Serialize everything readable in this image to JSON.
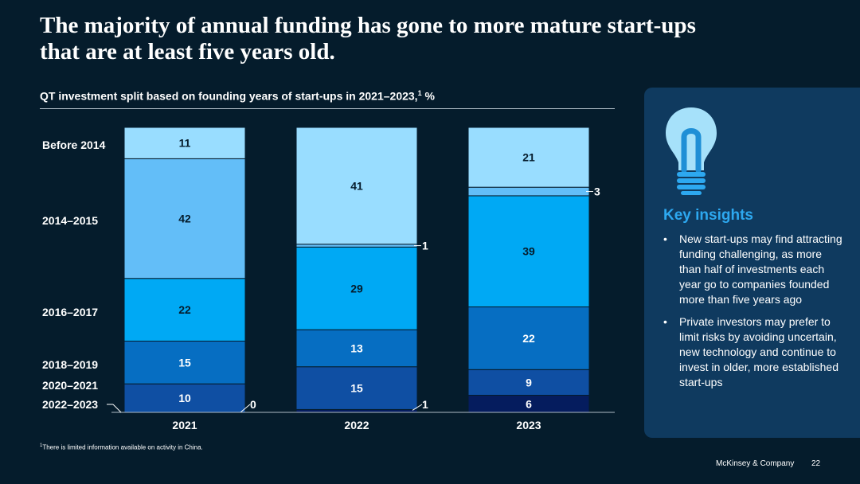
{
  "title_lines": [
    "The majority of annual funding has gone to more mature start-ups",
    "that are at least five years old."
  ],
  "subtitle_text": "QT investment split based on founding years of start-ups in 2021–2023,",
  "subtitle_sup": "1",
  "subtitle_suffix": " %",
  "colors": {
    "background": "#051c2c",
    "panel": "#0f3a5f",
    "accent": "#2da8f0",
    "segments": [
      "#051c5e",
      "#0f4fa3",
      "#066ec2",
      "#00a9f4",
      "#63bef8",
      "#99ddff"
    ]
  },
  "chart_data": {
    "type": "bar",
    "stacked": true,
    "categories": [
      "2021",
      "2022",
      "2023"
    ],
    "ylim": [
      0,
      100
    ],
    "unit": "%",
    "series": [
      {
        "name": "2022–2023",
        "values": [
          0,
          1,
          6
        ]
      },
      {
        "name": "2020–2021",
        "values": [
          10,
          15,
          9
        ]
      },
      {
        "name": "2018–2019",
        "values": [
          15,
          13,
          22
        ]
      },
      {
        "name": "2016–2017",
        "values": [
          22,
          29,
          39
        ]
      },
      {
        "name": "2014–2015",
        "values": [
          42,
          1,
          3
        ]
      },
      {
        "name": "Before 2014",
        "values": [
          11,
          41,
          21
        ]
      }
    ]
  },
  "insights": {
    "heading": "Key insights",
    "bullet_glyph": "•",
    "bullets": [
      "New start-ups may find attracting funding challenging, as more than half of investments each year go to companies founded more than five years ago",
      "Private investors may prefer to limit risks by avoiding uncertain, new technology and continue to invest in older, more established start-ups"
    ]
  },
  "footnote_sup": "1",
  "footnote_text": "There is limited information available on activity in China.",
  "brand": "McKinsey & Company",
  "page_number": "22"
}
